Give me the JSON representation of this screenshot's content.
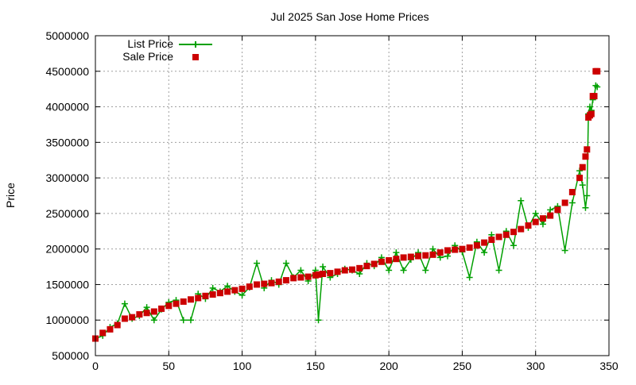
{
  "chart_data": {
    "type": "line",
    "title": "Jul 2025 San Jose Home Prices",
    "xlabel": "",
    "ylabel": "Price",
    "xlim": [
      0,
      350
    ],
    "ylim": [
      500000,
      5000000
    ],
    "xticks": [
      0,
      50,
      100,
      150,
      200,
      250,
      300,
      350
    ],
    "yticks": [
      500000,
      1000000,
      1500000,
      2000000,
      2500000,
      3000000,
      3500000,
      4000000,
      4500000,
      5000000
    ],
    "grid": true,
    "legend_position": "top-left",
    "series": [
      {
        "name": "List Price",
        "key": "list",
        "color": "#00a000",
        "style": "lines+plus"
      },
      {
        "name": "Sale Price",
        "key": "sale",
        "color": "#cc0000",
        "style": "squares"
      }
    ],
    "points": [
      {
        "x": 0,
        "sale": 740000,
        "list": 740000
      },
      {
        "x": 5,
        "sale": 820000,
        "list": 780000
      },
      {
        "x": 10,
        "sale": 870000,
        "list": 900000
      },
      {
        "x": 15,
        "sale": 930000,
        "list": 950000
      },
      {
        "x": 20,
        "sale": 1020000,
        "list": 1230000
      },
      {
        "x": 25,
        "sale": 1040000,
        "list": 1020000
      },
      {
        "x": 30,
        "sale": 1080000,
        "list": 1060000
      },
      {
        "x": 35,
        "sale": 1100000,
        "list": 1180000
      },
      {
        "x": 40,
        "sale": 1120000,
        "list": 1000000
      },
      {
        "x": 45,
        "sale": 1160000,
        "list": 1150000
      },
      {
        "x": 50,
        "sale": 1200000,
        "list": 1250000
      },
      {
        "x": 55,
        "sale": 1230000,
        "list": 1280000
      },
      {
        "x": 60,
        "sale": 1260000,
        "list": 1000000
      },
      {
        "x": 65,
        "sale": 1290000,
        "list": 1000000
      },
      {
        "x": 70,
        "sale": 1310000,
        "list": 1370000
      },
      {
        "x": 75,
        "sale": 1340000,
        "list": 1300000
      },
      {
        "x": 80,
        "sale": 1360000,
        "list": 1450000
      },
      {
        "x": 85,
        "sale": 1380000,
        "list": 1400000
      },
      {
        "x": 90,
        "sale": 1400000,
        "list": 1480000
      },
      {
        "x": 95,
        "sale": 1420000,
        "list": 1400000
      },
      {
        "x": 100,
        "sale": 1440000,
        "list": 1350000
      },
      {
        "x": 105,
        "sale": 1470000,
        "list": 1460000
      },
      {
        "x": 110,
        "sale": 1500000,
        "list": 1800000
      },
      {
        "x": 115,
        "sale": 1510000,
        "list": 1450000
      },
      {
        "x": 120,
        "sale": 1520000,
        "list": 1560000
      },
      {
        "x": 125,
        "sale": 1540000,
        "list": 1500000
      },
      {
        "x": 130,
        "sale": 1560000,
        "list": 1800000
      },
      {
        "x": 135,
        "sale": 1590000,
        "list": 1600000
      },
      {
        "x": 140,
        "sale": 1600000,
        "list": 1700000
      },
      {
        "x": 145,
        "sale": 1610000,
        "list": 1550000
      },
      {
        "x": 150,
        "sale": 1630000,
        "list": 1700000
      },
      {
        "x": 152,
        "sale": 1640000,
        "list": 1000000
      },
      {
        "x": 155,
        "sale": 1650000,
        "list": 1750000
      },
      {
        "x": 160,
        "sale": 1660000,
        "list": 1600000
      },
      {
        "x": 165,
        "sale": 1680000,
        "list": 1650000
      },
      {
        "x": 170,
        "sale": 1700000,
        "list": 1720000
      },
      {
        "x": 175,
        "sale": 1710000,
        "list": 1700000
      },
      {
        "x": 180,
        "sale": 1730000,
        "list": 1650000
      },
      {
        "x": 185,
        "sale": 1760000,
        "list": 1800000
      },
      {
        "x": 190,
        "sale": 1790000,
        "list": 1760000
      },
      {
        "x": 195,
        "sale": 1820000,
        "list": 1880000
      },
      {
        "x": 200,
        "sale": 1840000,
        "list": 1700000
      },
      {
        "x": 205,
        "sale": 1860000,
        "list": 1950000
      },
      {
        "x": 210,
        "sale": 1880000,
        "list": 1700000
      },
      {
        "x": 215,
        "sale": 1890000,
        "list": 1850000
      },
      {
        "x": 220,
        "sale": 1900000,
        "list": 1950000
      },
      {
        "x": 225,
        "sale": 1910000,
        "list": 1700000
      },
      {
        "x": 230,
        "sale": 1920000,
        "list": 2000000
      },
      {
        "x": 235,
        "sale": 1950000,
        "list": 1880000
      },
      {
        "x": 240,
        "sale": 1980000,
        "list": 1900000
      },
      {
        "x": 245,
        "sale": 1990000,
        "list": 2050000
      },
      {
        "x": 250,
        "sale": 2000000,
        "list": 1960000
      },
      {
        "x": 255,
        "sale": 2020000,
        "list": 1600000
      },
      {
        "x": 260,
        "sale": 2050000,
        "list": 2100000
      },
      {
        "x": 265,
        "sale": 2090000,
        "list": 1950000
      },
      {
        "x": 270,
        "sale": 2130000,
        "list": 2200000
      },
      {
        "x": 275,
        "sale": 2170000,
        "list": 1700000
      },
      {
        "x": 280,
        "sale": 2200000,
        "list": 2250000
      },
      {
        "x": 285,
        "sale": 2240000,
        "list": 2050000
      },
      {
        "x": 290,
        "sale": 2280000,
        "list": 2680000
      },
      {
        "x": 295,
        "sale": 2330000,
        "list": 2300000
      },
      {
        "x": 300,
        "sale": 2380000,
        "list": 2500000
      },
      {
        "x": 305,
        "sale": 2430000,
        "list": 2350000
      },
      {
        "x": 310,
        "sale": 2470000,
        "list": 2550000
      },
      {
        "x": 315,
        "sale": 2550000,
        "list": 2600000
      },
      {
        "x": 320,
        "sale": 2650000,
        "list": 1980000
      },
      {
        "x": 325,
        "sale": 2800000,
        "list": 2650000
      },
      {
        "x": 330,
        "sale": 3000000,
        "list": 3100000
      },
      {
        "x": 332,
        "sale": 3150000,
        "list": 2900000
      },
      {
        "x": 334,
        "sale": 3300000,
        "list": 2580000
      },
      {
        "x": 335,
        "sale": 3400000,
        "list": 2750000
      },
      {
        "x": 336,
        "sale": 3850000,
        "list": 3900000
      },
      {
        "x": 337,
        "sale": 3880000,
        "list": 4000000
      },
      {
        "x": 338,
        "sale": 3900000,
        "list": 3950000
      },
      {
        "x": 339,
        "sale": 4150000,
        "list": 4100000
      },
      {
        "x": 340,
        "sale": 4150000,
        "list": 4150000
      },
      {
        "x": 341,
        "sale": 4500000,
        "list": 4300000
      },
      {
        "x": 342,
        "sale": 4500000,
        "list": 4280000
      }
    ]
  }
}
